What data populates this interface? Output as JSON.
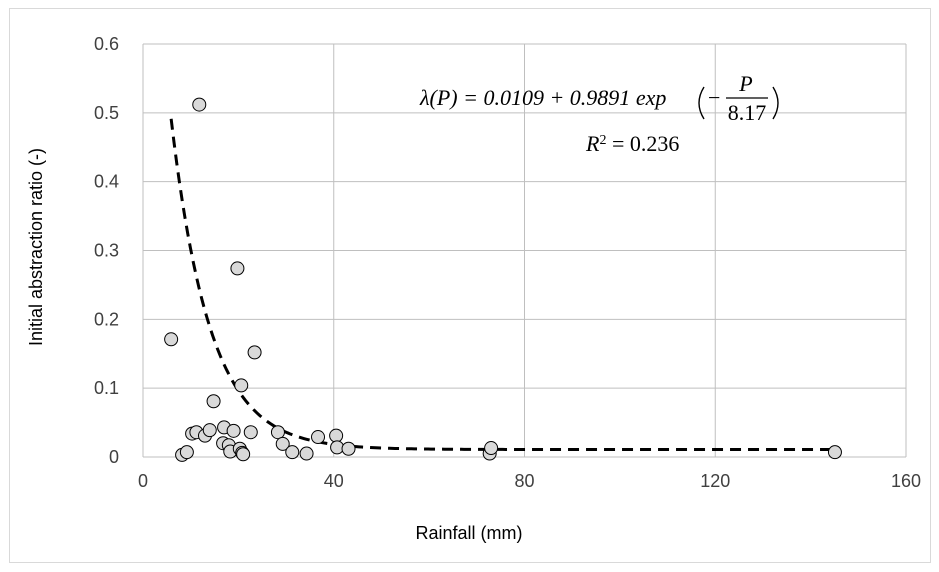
{
  "chart_data": {
    "type": "scatter",
    "title": "",
    "xlabel": "Rainfall (mm)",
    "ylabel": "Initial abstraction ratio (-)",
    "xlim": [
      0,
      160
    ],
    "ylim": [
      0,
      0.6
    ],
    "x_ticks": [
      0,
      40,
      80,
      120,
      160
    ],
    "y_ticks": [
      0,
      0.1,
      0.2,
      0.3,
      0.4,
      0.5,
      0.6
    ],
    "x_tick_labels": [
      "0",
      "40",
      "80",
      "120",
      "160"
    ],
    "y_tick_labels": [
      "0",
      "0.1",
      "0.2",
      "0.3",
      "0.4",
      "0.5",
      "0.6"
    ],
    "grid": true,
    "series": [
      {
        "points": [
          {
            "x": 5.9,
            "y": 0.171
          },
          {
            "x": 8.2,
            "y": 0.003
          },
          {
            "x": 9.2,
            "y": 0.007
          },
          {
            "x": 10.3,
            "y": 0.034
          },
          {
            "x": 11.2,
            "y": 0.036
          },
          {
            "x": 11.8,
            "y": 0.512
          },
          {
            "x": 13.0,
            "y": 0.031
          },
          {
            "x": 14.0,
            "y": 0.039
          },
          {
            "x": 14.8,
            "y": 0.081
          },
          {
            "x": 16.8,
            "y": 0.02
          },
          {
            "x": 17.0,
            "y": 0.043
          },
          {
            "x": 18.0,
            "y": 0.017
          },
          {
            "x": 18.3,
            "y": 0.008
          },
          {
            "x": 19.0,
            "y": 0.038
          },
          {
            "x": 19.8,
            "y": 0.274
          },
          {
            "x": 20.3,
            "y": 0.012
          },
          {
            "x": 20.6,
            "y": 0.104
          },
          {
            "x": 20.8,
            "y": 0.006
          },
          {
            "x": 21.0,
            "y": 0.004
          },
          {
            "x": 22.6,
            "y": 0.036
          },
          {
            "x": 23.4,
            "y": 0.152
          },
          {
            "x": 28.3,
            "y": 0.036
          },
          {
            "x": 29.3,
            "y": 0.019
          },
          {
            "x": 31.3,
            "y": 0.007
          },
          {
            "x": 34.3,
            "y": 0.005
          },
          {
            "x": 36.7,
            "y": 0.029
          },
          {
            "x": 40.5,
            "y": 0.031
          },
          {
            "x": 40.7,
            "y": 0.014
          },
          {
            "x": 43.1,
            "y": 0.012
          },
          {
            "x": 72.7,
            "y": 0.005
          },
          {
            "x": 73.0,
            "y": 0.013
          },
          {
            "x": 145.1,
            "y": 0.007
          }
        ]
      }
    ],
    "fit_curve": {
      "style": "dashed",
      "a": 0.0109,
      "b": 0.9891,
      "k": 8.17,
      "x_range": [
        5.9,
        145
      ]
    },
    "annotation": {
      "equation_lhs": "λ(P) = 0.0109 + 0.9891 ",
      "equation_exp": "exp",
      "equation_minus": "−",
      "equation_num": "P",
      "equation_den": "8.17",
      "r2_label": "R",
      "r2_sup": "2",
      "r2_value": " = 0.236"
    }
  }
}
